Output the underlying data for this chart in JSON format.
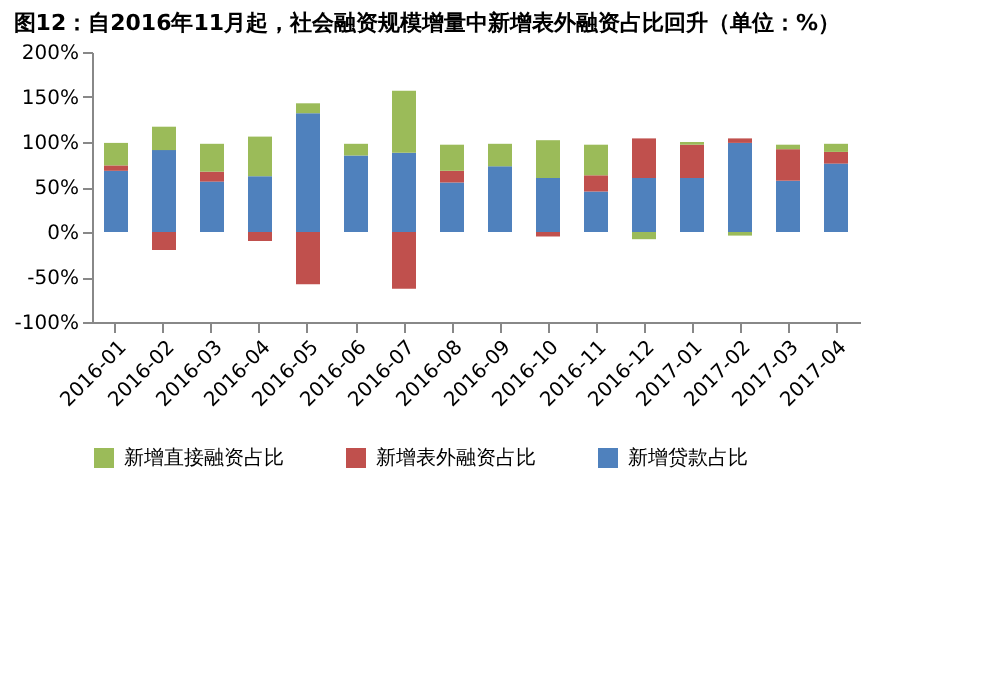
{
  "chart_data": {
    "type": "bar",
    "stacked": true,
    "title": "图12：自2016年11月起，社会融资规模增量中新增表外融资占比回升（单位：%）",
    "categories": [
      "2016-01",
      "2016-02",
      "2016-03",
      "2016-04",
      "2016-05",
      "2016-06",
      "2016-07",
      "2016-08",
      "2016-09",
      "2016-10",
      "2016-11",
      "2016-12",
      "2017-01",
      "2017-02",
      "2017-03",
      "2017-04"
    ],
    "series": [
      {
        "name": "新增贷款占比",
        "color": "#4f81bd",
        "values": [
          68,
          91,
          56,
          62,
          132,
          85,
          88,
          55,
          73,
          60,
          45,
          60,
          60,
          99,
          57,
          76
        ]
      },
      {
        "name": "新增表外融资占比",
        "color": "#c0504d",
        "values": [
          6,
          -20,
          11,
          -10,
          -58,
          null,
          -63,
          13,
          null,
          -5,
          18,
          44,
          37,
          5,
          35,
          13
        ]
      },
      {
        "name": "新增直接融资占比",
        "color": "#9bbb59",
        "values": [
          25,
          26,
          31,
          44,
          11,
          13,
          69,
          29,
          25,
          42,
          34,
          -8,
          3,
          -4,
          5,
          9
        ]
      }
    ],
    "ylim": [
      -100,
      200
    ],
    "yticks": [
      {
        "value": -100,
        "label": "-100%"
      },
      {
        "value": -50,
        "label": "-50%"
      },
      {
        "value": 0,
        "label": "0%"
      },
      {
        "value": 50,
        "label": "50%"
      },
      {
        "value": 100,
        "label": "100%"
      },
      {
        "value": 150,
        "label": "150%"
      },
      {
        "value": 200,
        "label": "200%"
      }
    ],
    "grid": false,
    "legend": "bottom"
  }
}
